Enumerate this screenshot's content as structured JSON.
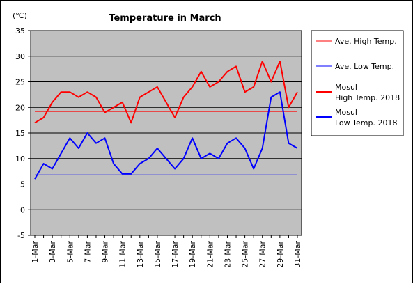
{
  "chart_data": {
    "type": "line",
    "title": "Temperature in March",
    "ylabel": "(℃)",
    "xlabel": "",
    "ylim": [
      -5,
      35
    ],
    "yticks": [
      35,
      30,
      25,
      20,
      15,
      10,
      5,
      0,
      -5
    ],
    "x": [
      "1-Mar",
      "2-Mar",
      "3-Mar",
      "4-Mar",
      "5-Mar",
      "6-Mar",
      "7-Mar",
      "8-Mar",
      "9-Mar",
      "10-Mar",
      "11-Mar",
      "12-Mar",
      "13-Mar",
      "14-Mar",
      "15-Mar",
      "16-Mar",
      "17-Mar",
      "18-Mar",
      "19-Mar",
      "20-Mar",
      "21-Mar",
      "22-Mar",
      "23-Mar",
      "24-Mar",
      "25-Mar",
      "26-Mar",
      "27-Mar",
      "28-Mar",
      "29-Mar",
      "30-Mar",
      "31-Mar"
    ],
    "xtick_labels": [
      "1-Mar",
      "3-Mar",
      "5-Mar",
      "7-Mar",
      "9-Mar",
      "11-Mar",
      "13-Mar",
      "15-Mar",
      "17-Mar",
      "19-Mar",
      "21-Mar",
      "23-Mar",
      "25-Mar",
      "27-Mar",
      "29-Mar",
      "31-Mar"
    ],
    "grid": true,
    "legend_position": "right",
    "plot_background": "#c0c0c0",
    "series": [
      {
        "name": "Ave. High Temp.",
        "color": "#ff0000",
        "width": 1,
        "values": [
          19.2,
          19.2,
          19.2,
          19.2,
          19.2,
          19.2,
          19.2,
          19.2,
          19.2,
          19.2,
          19.2,
          19.2,
          19.2,
          19.2,
          19.2,
          19.2,
          19.2,
          19.2,
          19.2,
          19.2,
          19.2,
          19.2,
          19.2,
          19.2,
          19.2,
          19.2,
          19.2,
          19.2,
          19.2,
          19.2,
          19.2
        ]
      },
      {
        "name": "Ave. Low Temp.",
        "color": "#0000ff",
        "width": 1,
        "values": [
          6.8,
          6.8,
          6.8,
          6.8,
          6.8,
          6.8,
          6.8,
          6.8,
          6.8,
          6.8,
          6.8,
          6.8,
          6.8,
          6.8,
          6.8,
          6.8,
          6.8,
          6.8,
          6.8,
          6.8,
          6.8,
          6.8,
          6.8,
          6.8,
          6.8,
          6.8,
          6.8,
          6.8,
          6.8,
          6.8,
          6.8
        ]
      },
      {
        "name": "Mosul High Temp. 2018",
        "label_lines": [
          "Mosul",
          "High Temp. 2018"
        ],
        "color": "#ff0000",
        "width": 2,
        "values": [
          17,
          18,
          21,
          23,
          23,
          22,
          23,
          22,
          19,
          20,
          21,
          17,
          22,
          23,
          24,
          21,
          18,
          22,
          24,
          27,
          24,
          25,
          27,
          28,
          23,
          24,
          29,
          25,
          29,
          20,
          23
        ]
      },
      {
        "name": "Mosul Low Temp. 2018",
        "label_lines": [
          "Mosul",
          "Low Temp. 2018"
        ],
        "color": "#0000ff",
        "width": 2,
        "values": [
          6,
          9,
          8,
          11,
          14,
          12,
          15,
          13,
          14,
          9,
          7,
          7,
          9,
          10,
          12,
          10,
          8,
          10,
          14,
          10,
          11,
          10,
          13,
          14,
          12,
          8,
          12,
          22,
          23,
          13,
          12
        ]
      }
    ]
  }
}
